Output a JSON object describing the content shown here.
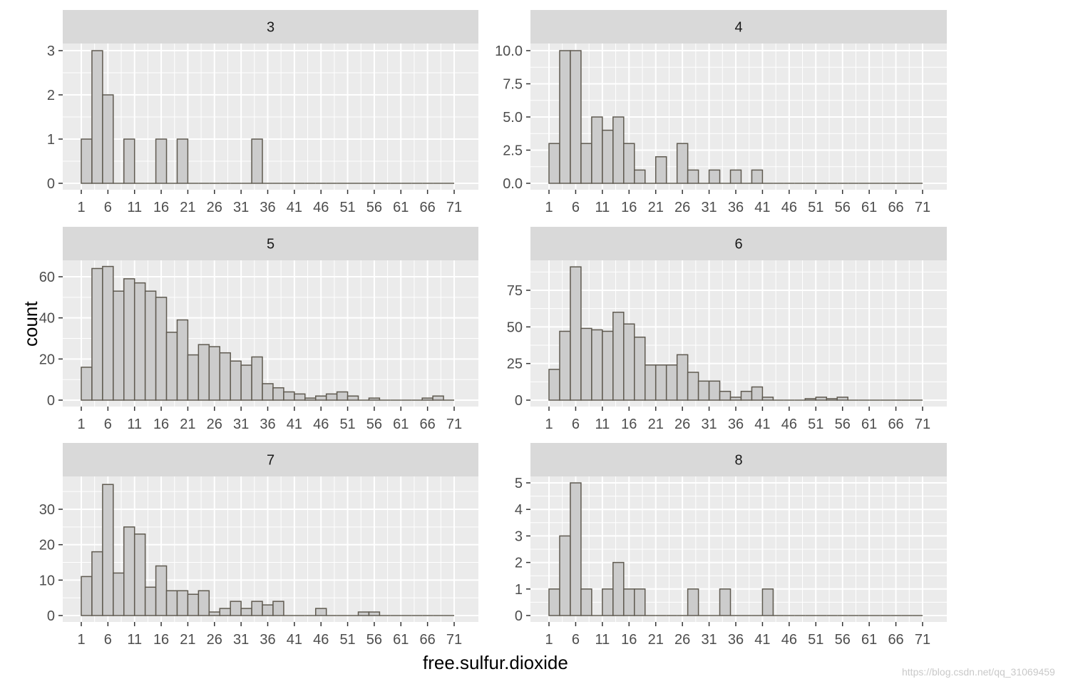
{
  "axis_titles": {
    "x": "free.sulfur.dioxide",
    "y": "count"
  },
  "watermark": "https://blog.csdn.net/qq_31069459",
  "colors": {
    "panel_background": "#ebebeb",
    "strip_background": "#d9d9d9",
    "grid": "#ffffff",
    "bar_fill": "#cccccc",
    "bar_outline": "#5f5a50",
    "axis_text": "#4d4d4d"
  },
  "chart_data": {
    "type": "bar",
    "facet_variable": "quality",
    "xlabel": "free.sulfur.dioxide",
    "ylabel": "count",
    "bin_width": 2,
    "bin_start": 1,
    "x_ticks": [
      "1",
      "6",
      "11",
      "16",
      "21",
      "26",
      "31",
      "36",
      "41",
      "46",
      "51",
      "56",
      "61",
      "66",
      "71"
    ],
    "x_range": [
      1,
      71
    ],
    "panels": [
      {
        "label": "3",
        "ylim": [
          0,
          3.0
        ],
        "y_ticks": [
          0,
          1,
          2,
          3
        ],
        "y_tick_labels": [
          "0",
          "1",
          "2",
          "3"
        ],
        "counts": [
          1,
          3,
          2,
          0,
          1,
          0,
          0,
          1,
          0,
          1,
          0,
          0,
          0,
          0,
          0,
          0,
          1,
          0,
          0,
          0,
          0,
          0,
          0,
          0,
          0,
          0,
          0,
          0,
          0,
          0,
          0,
          0,
          0,
          0,
          0
        ]
      },
      {
        "label": "4",
        "ylim": [
          0,
          10.0
        ],
        "y_ticks": [
          0,
          2.5,
          5,
          7.5,
          10
        ],
        "y_tick_labels": [
          "0.0",
          "2.5",
          "5.0",
          "7.5",
          "10.0"
        ],
        "counts": [
          3,
          10,
          10,
          3,
          5,
          4,
          5,
          3,
          1,
          0,
          2,
          0,
          3,
          1,
          0,
          1,
          0,
          1,
          0,
          1,
          0,
          0,
          0,
          0,
          0,
          0,
          0,
          0,
          0,
          0,
          0,
          0,
          0,
          0,
          0
        ]
      },
      {
        "label": "5",
        "ylim": [
          0,
          65
        ],
        "y_ticks": [
          0,
          20,
          40,
          60
        ],
        "y_tick_labels": [
          "0",
          "20",
          "40",
          "60"
        ],
        "counts": [
          16,
          64,
          65,
          53,
          59,
          57,
          53,
          50,
          33,
          39,
          22,
          27,
          26,
          23,
          19,
          17,
          21,
          8,
          6,
          4,
          3,
          1,
          2,
          3,
          4,
          2,
          0,
          1,
          0,
          0,
          0,
          0,
          1,
          2,
          0
        ]
      },
      {
        "label": "6",
        "ylim": [
          0,
          91
        ],
        "y_ticks": [
          0,
          25,
          50,
          75
        ],
        "y_tick_labels": [
          "0",
          "25",
          "50",
          "75"
        ],
        "counts": [
          21,
          47,
          91,
          49,
          48,
          47,
          60,
          52,
          43,
          24,
          24,
          24,
          31,
          19,
          13,
          13,
          6,
          2,
          6,
          9,
          2,
          0,
          0,
          0,
          1,
          2,
          1,
          2,
          0,
          0,
          0,
          0,
          0,
          0,
          0
        ]
      },
      {
        "label": "7",
        "ylim": [
          0,
          37
        ],
        "y_ticks": [
          0,
          10,
          20,
          30
        ],
        "y_tick_labels": [
          "0",
          "10",
          "20",
          "30"
        ],
        "counts": [
          11,
          18,
          37,
          12,
          25,
          23,
          8,
          14,
          7,
          7,
          6,
          7,
          1,
          2,
          4,
          2,
          4,
          3,
          4,
          0,
          0,
          0,
          2,
          0,
          0,
          0,
          1,
          1,
          0,
          0,
          0,
          0,
          0,
          0,
          0
        ]
      },
      {
        "label": "8",
        "ylim": [
          0,
          5
        ],
        "y_ticks": [
          0,
          1,
          2,
          3,
          4,
          5
        ],
        "y_tick_labels": [
          "0",
          "1",
          "2",
          "3",
          "4",
          "5"
        ],
        "counts": [
          1,
          3,
          5,
          1,
          0,
          1,
          2,
          1,
          1,
          0,
          0,
          0,
          0,
          1,
          0,
          0,
          1,
          0,
          0,
          0,
          1,
          0,
          0,
          0,
          0,
          0,
          0,
          0,
          0,
          0,
          0,
          0,
          0,
          0,
          0
        ]
      }
    ]
  }
}
